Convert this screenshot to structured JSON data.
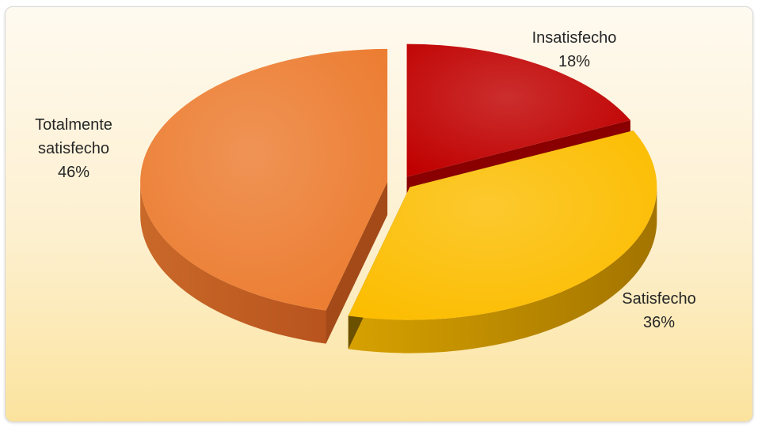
{
  "chart_data": {
    "type": "pie",
    "style": "3d-exploded",
    "title": "",
    "categories": [
      "Insatisfecho",
      "Satisfecho",
      "Totalmente satisfecho"
    ],
    "values": [
      18,
      36,
      46
    ],
    "unit": "%",
    "slices": [
      {
        "label": "Insatisfecho",
        "value": 18,
        "value_label": "18%",
        "color": "#c00000"
      },
      {
        "label": "Satisfecho",
        "value": 36,
        "value_label": "36%",
        "color": "#fcbd00"
      },
      {
        "label": "Totalmente satisfecho",
        "label_lines": [
          "Totalmente",
          "satisfecho"
        ],
        "value": 46,
        "value_label": "46%",
        "color": "#ec7c30"
      }
    ],
    "legend": "none"
  }
}
